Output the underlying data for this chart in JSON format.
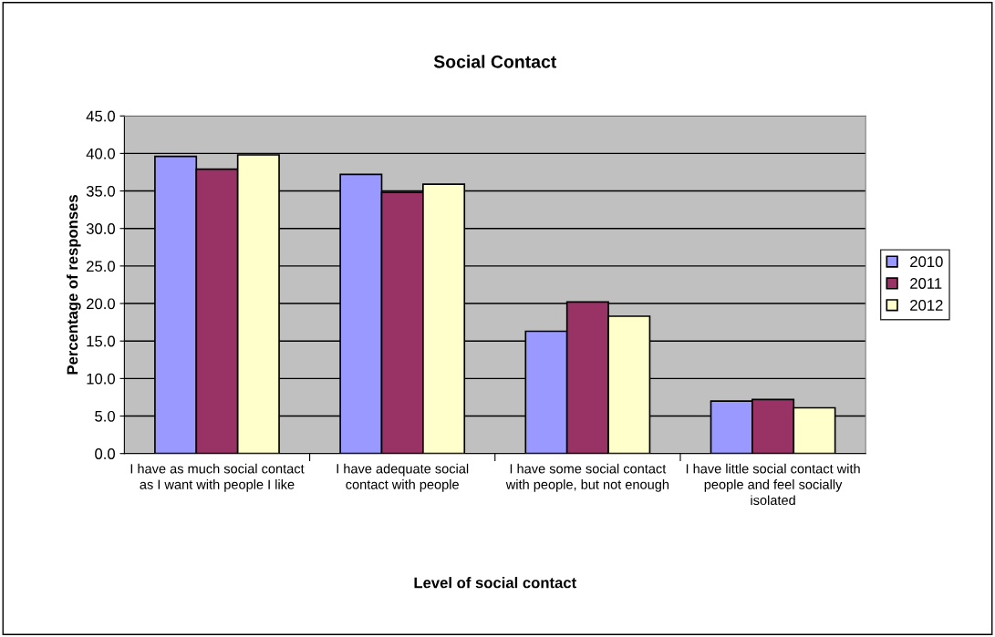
{
  "chart_data": {
    "type": "bar",
    "title": "Social Contact",
    "xlabel": "Level of social contact",
    "ylabel": "Percentage of responses",
    "categories": [
      "I have as much social contact as I want with people I like",
      "I have adequate social contact with people",
      "I have some social contact with people, but not enough",
      "I have little social contact with people and feel socially isolated"
    ],
    "series": [
      {
        "name": "2010",
        "color": "#9999ff",
        "values": [
          39.6,
          37.2,
          16.3,
          7.0
        ]
      },
      {
        "name": "2011",
        "color": "#993366",
        "values": [
          37.9,
          34.8,
          20.2,
          7.2
        ]
      },
      {
        "name": "2012",
        "color": "#ffffcc",
        "values": [
          39.8,
          35.9,
          18.3,
          6.1
        ]
      }
    ],
    "ylim": [
      0,
      45
    ],
    "yticks": [
      {
        "value": 0,
        "label": "0.0"
      },
      {
        "value": 5,
        "label": "5.0"
      },
      {
        "value": 10,
        "label": "10.0"
      },
      {
        "value": 15,
        "label": "15.0"
      },
      {
        "value": 20,
        "label": "20.0"
      },
      {
        "value": 25,
        "label": "25.0"
      },
      {
        "value": 30,
        "label": "30.0"
      },
      {
        "value": 35,
        "label": "35.0"
      },
      {
        "value": 40,
        "label": "40.0"
      },
      {
        "value": 45,
        "label": "45.0"
      }
    ],
    "grid": "y",
    "legend": "right"
  }
}
